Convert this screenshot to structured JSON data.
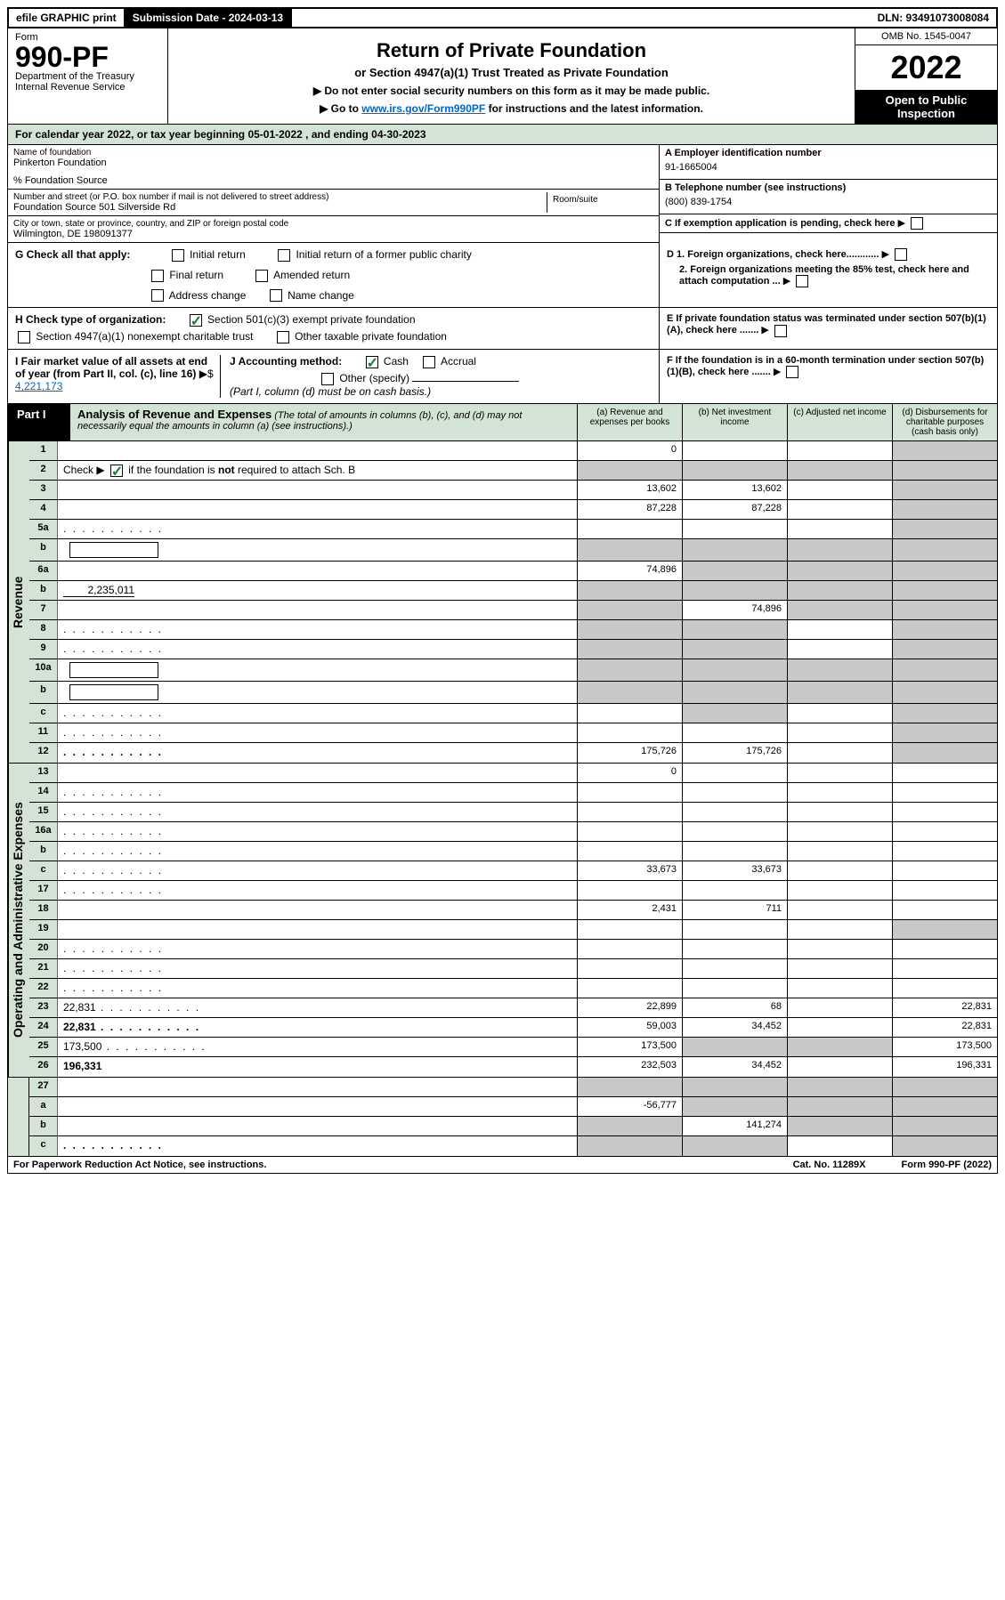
{
  "topbar": {
    "efile": "efile GRAPHIC print",
    "sub_label": "Submission Date - 2024-03-13",
    "dln": "DLN: 93491073008084"
  },
  "header": {
    "form_label": "Form",
    "form_num": "990-PF",
    "dept1": "Department of the Treasury",
    "dept2": "Internal Revenue Service",
    "title": "Return of Private Foundation",
    "subtitle": "or Section 4947(a)(1) Trust Treated as Private Foundation",
    "note1": "▶ Do not enter social security numbers on this form as it may be made public.",
    "note2_pre": "▶ Go to ",
    "note2_link": "www.irs.gov/Form990PF",
    "note2_post": " for instructions and the latest information.",
    "omb": "OMB No. 1545-0047",
    "year": "2022",
    "open": "Open to Public Inspection"
  },
  "calendar": "For calendar year 2022, or tax year beginning 05-01-2022            , and ending 04-30-2023",
  "entity": {
    "name_label": "Name of foundation",
    "name": "Pinkerton Foundation",
    "care": "% Foundation Source",
    "addr_label": "Number and street (or P.O. box number if mail is not delivered to street address)",
    "addr": "Foundation Source 501 Silverside Rd",
    "room_label": "Room/suite",
    "city_label": "City or town, state or province, country, and ZIP or foreign postal code",
    "city": "Wilmington, DE  198091377",
    "a_label": "A Employer identification number",
    "a_val": "91-1665004",
    "b_label": "B Telephone number (see instructions)",
    "b_val": "(800) 839-1754",
    "c_label": "C If exemption application is pending, check here",
    "d1": "D 1. Foreign organizations, check here............",
    "d2": "2. Foreign organizations meeting the 85% test, check here and attach computation ...",
    "e": "E  If private foundation status was terminated under section 507(b)(1)(A), check here .......",
    "f": "F  If the foundation is in a 60-month termination under section 507(b)(1)(B), check here .......",
    "g": "G Check all that apply:",
    "g_opts": [
      "Initial return",
      "Initial return of a former public charity",
      "Final return",
      "Amended return",
      "Address change",
      "Name change"
    ],
    "h": "H Check type of organization:",
    "h1": "Section 501(c)(3) exempt private foundation",
    "h2": "Section 4947(a)(1) nonexempt charitable trust",
    "h3": "Other taxable private foundation",
    "i": "I Fair market value of all assets at end of year (from Part II, col. (c), line 16)",
    "i_val": "4,221,173",
    "j": "J Accounting method:",
    "j_cash": "Cash",
    "j_accrual": "Accrual",
    "j_other": "Other (specify)",
    "j_note": "(Part I, column (d) must be on cash basis.)"
  },
  "part1": {
    "label": "Part I",
    "title": "Analysis of Revenue and Expenses",
    "note": "(The total of amounts in columns (b), (c), and (d) may not necessarily equal the amounts in column (a) (see instructions).)",
    "col_a": "(a)    Revenue and expenses per books",
    "col_b": "(b)    Net investment income",
    "col_c": "(c)    Adjusted net income",
    "col_d": "(d)    Disbursements for charitable purposes (cash basis only)"
  },
  "sections": {
    "revenue": "Revenue",
    "expenses": "Operating and Administrative Expenses"
  },
  "rows": [
    {
      "n": "1",
      "d": "",
      "a": "0",
      "b": "",
      "c": "",
      "grey": [
        "d"
      ]
    },
    {
      "n": "2",
      "d": "",
      "a": "",
      "b": "",
      "c": "",
      "grey": [
        "a",
        "b",
        "c",
        "d"
      ],
      "html": true
    },
    {
      "n": "3",
      "d": "",
      "a": "13,602",
      "b": "13,602",
      "c": "",
      "grey": [
        "d"
      ]
    },
    {
      "n": "4",
      "d": "",
      "a": "87,228",
      "b": "87,228",
      "c": "",
      "grey": [
        "d"
      ]
    },
    {
      "n": "5a",
      "d": "",
      "a": "",
      "b": "",
      "c": "",
      "grey": [
        "d"
      ],
      "dots": true
    },
    {
      "n": "b",
      "d": "",
      "a": "",
      "b": "",
      "c": "",
      "grey": [
        "a",
        "b",
        "c",
        "d"
      ],
      "box": true
    },
    {
      "n": "6a",
      "d": "",
      "a": "74,896",
      "b": "",
      "c": "",
      "grey": [
        "b",
        "c",
        "d"
      ]
    },
    {
      "n": "b",
      "d": "",
      "a": "",
      "b": "",
      "c": "",
      "grey": [
        "a",
        "b",
        "c",
        "d"
      ],
      "inline_val": "2,235,011"
    },
    {
      "n": "7",
      "d": "",
      "a": "",
      "b": "74,896",
      "c": "",
      "grey": [
        "a",
        "c",
        "d"
      ]
    },
    {
      "n": "8",
      "d": "",
      "a": "",
      "b": "",
      "c": "",
      "grey": [
        "a",
        "b",
        "d"
      ],
      "dots": true
    },
    {
      "n": "9",
      "d": "",
      "a": "",
      "b": "",
      "c": "",
      "grey": [
        "a",
        "b",
        "d"
      ],
      "dots": true
    },
    {
      "n": "10a",
      "d": "",
      "a": "",
      "b": "",
      "c": "",
      "grey": [
        "a",
        "b",
        "c",
        "d"
      ],
      "box": true
    },
    {
      "n": "b",
      "d": "",
      "a": "",
      "b": "",
      "c": "",
      "grey": [
        "a",
        "b",
        "c",
        "d"
      ],
      "box": true
    },
    {
      "n": "c",
      "d": "",
      "a": "",
      "b": "",
      "c": "",
      "grey": [
        "b",
        "d"
      ],
      "dots": true
    },
    {
      "n": "11",
      "d": "",
      "a": "",
      "b": "",
      "c": "",
      "grey": [
        "d"
      ],
      "dots": true
    },
    {
      "n": "12",
      "d": "",
      "a": "175,726",
      "b": "175,726",
      "c": "",
      "grey": [
        "d"
      ],
      "bold": true,
      "dots": true
    }
  ],
  "exp_rows": [
    {
      "n": "13",
      "d": "",
      "a": "0",
      "b": "",
      "c": ""
    },
    {
      "n": "14",
      "d": "",
      "a": "",
      "b": "",
      "c": "",
      "dots": true
    },
    {
      "n": "15",
      "d": "",
      "a": "",
      "b": "",
      "c": "",
      "dots": true
    },
    {
      "n": "16a",
      "d": "",
      "a": "",
      "b": "",
      "c": "",
      "dots": true
    },
    {
      "n": "b",
      "d": "",
      "a": "",
      "b": "",
      "c": "",
      "dots": true
    },
    {
      "n": "c",
      "d": "",
      "a": "33,673",
      "b": "33,673",
      "c": "",
      "dots": true
    },
    {
      "n": "17",
      "d": "",
      "a": "",
      "b": "",
      "c": "",
      "dots": true
    },
    {
      "n": "18",
      "d": "",
      "a": "2,431",
      "b": "711",
      "c": ""
    },
    {
      "n": "19",
      "d": "",
      "a": "",
      "b": "",
      "c": "",
      "grey": [
        "d"
      ]
    },
    {
      "n": "20",
      "d": "",
      "a": "",
      "b": "",
      "c": "",
      "dots": true
    },
    {
      "n": "21",
      "d": "",
      "a": "",
      "b": "",
      "c": "",
      "dots": true
    },
    {
      "n": "22",
      "d": "",
      "a": "",
      "b": "",
      "c": "",
      "dots": true
    },
    {
      "n": "23",
      "d": "22,831",
      "a": "22,899",
      "b": "68",
      "c": "",
      "dots": true
    },
    {
      "n": "24",
      "d": "22,831",
      "a": "59,003",
      "b": "34,452",
      "c": "",
      "bold": true,
      "dots": true
    },
    {
      "n": "25",
      "d": "173,500",
      "a": "173,500",
      "b": "",
      "c": "",
      "grey": [
        "b",
        "c"
      ],
      "dots": true
    },
    {
      "n": "26",
      "d": "196,331",
      "a": "232,503",
      "b": "34,452",
      "c": "",
      "bold": true
    }
  ],
  "bottom_rows": [
    {
      "n": "27",
      "d": "",
      "a": "",
      "b": "",
      "c": "",
      "grey": [
        "a",
        "b",
        "c",
        "d"
      ]
    },
    {
      "n": "a",
      "d": "",
      "a": "-56,777",
      "b": "",
      "c": "",
      "grey": [
        "b",
        "c",
        "d"
      ],
      "bold": true
    },
    {
      "n": "b",
      "d": "",
      "a": "",
      "b": "141,274",
      "c": "",
      "grey": [
        "a",
        "c",
        "d"
      ],
      "bold": true
    },
    {
      "n": "c",
      "d": "",
      "a": "",
      "b": "",
      "c": "",
      "grey": [
        "a",
        "b",
        "d"
      ],
      "bold": true,
      "dots": true
    }
  ],
  "footer": {
    "left": "For Paperwork Reduction Act Notice, see instructions.",
    "mid": "Cat. No. 11289X",
    "right": "Form 990-PF (2022)"
  }
}
